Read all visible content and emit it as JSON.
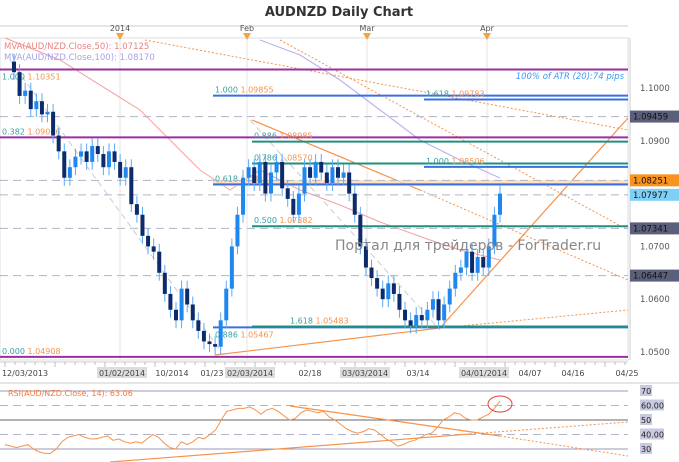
{
  "chart_data": {
    "type": "candlestick",
    "title": "AUDNZD Daily Chart",
    "top_markers": [
      "2014",
      "Feb",
      "Mar",
      "Apr"
    ],
    "x_tick_labels": [
      "12/03/2013",
      "01/02/2014",
      "10/2014",
      "01/23",
      "02/03/2014",
      "02/18",
      "03/03/2014",
      "03/14",
      "04/01/2014",
      "04/07",
      "04/16",
      "04/25"
    ],
    "y_tick_labels": [
      "1.1000",
      "1.0900",
      "1.0700",
      "1.0600",
      "1.0500"
    ],
    "y_ticks": [
      1.1,
      1.09,
      1.07,
      1.06,
      1.05
    ],
    "ylim": [
      1.0465,
      1.1125
    ],
    "price_tags": [
      {
        "value": "1.09459",
        "color": "#5a5f7a"
      },
      {
        "value": "1.08251",
        "color": "#f7931e"
      },
      {
        "value": "1.07977",
        "color": "#7fd0f7"
      },
      {
        "value": "1.07341",
        "color": "#5a5f7a"
      },
      {
        "value": "1.06447",
        "color": "#5a5f7a"
      }
    ],
    "close": [
      1.103,
      1.0985,
      1.0995,
      1.096,
      1.0975,
      1.095,
      1.0955,
      1.091,
      1.088,
      1.083,
      1.085,
      1.087,
      1.088,
      1.086,
      1.089,
      1.0875,
      1.085,
      1.088,
      1.086,
      1.083,
      1.085,
      1.078,
      1.076,
      1.072,
      1.07,
      1.069,
      1.065,
      1.061,
      1.058,
      1.056,
      1.062,
      1.059,
      1.056,
      1.054,
      1.052,
      1.0515,
      1.051,
      1.056,
      1.062,
      1.07,
      1.076,
      1.083,
      1.085,
      1.082,
      1.086,
      1.08,
      1.084,
      1.086,
      1.081,
      1.079,
      1.076,
      1.08,
      1.085,
      1.083,
      1.086,
      1.084,
      1.082,
      1.085,
      1.083,
      1.084,
      1.08,
      1.076,
      1.07,
      1.066,
      1.064,
      1.062,
      1.06,
      1.063,
      1.061,
      1.058,
      1.056,
      1.055,
      1.057,
      1.056,
      1.058,
      1.06,
      1.056,
      1.059,
      1.062,
      1.065,
      1.066,
      1.069,
      1.065,
      1.068,
      1.066,
      1.07,
      1.076,
      1.08
    ],
    "fib_levels": [
      {
        "ratio": "1.000",
        "value": "1.10351",
        "color": "#9b2fa0"
      },
      {
        "ratio": "1.000",
        "value": "1.09855",
        "color": "#3b6fe0"
      },
      {
        "ratio": "1.618",
        "value": "1.09783",
        "color": "#3b6fe0"
      },
      {
        "ratio": "0.382",
        "value": "1.09066",
        "color": "#9b2fa0"
      },
      {
        "ratio": "0.886",
        "value": "1.08985",
        "color": "#1f9080"
      },
      {
        "ratio": "0.786",
        "value": "1.08570",
        "color": "#1f9080"
      },
      {
        "ratio": "1.000",
        "value": "1.08506",
        "color": "#3b6fe0"
      },
      {
        "ratio": "0.618",
        "value": "1.08175",
        "color": "#3b6fe0"
      },
      {
        "ratio": "0.500",
        "value": "1.07382",
        "color": "#1f9080"
      },
      {
        "ratio": "0.886",
        "value": "1.05467",
        "color": "#3b6fe0"
      },
      {
        "ratio": "1.618",
        "value": "1.05483",
        "color": "#1f9080"
      },
      {
        "ratio": "0.000",
        "value": "1.04908",
        "color": "#9b2fa0"
      }
    ],
    "legend": {
      "ma50": "MVA(AUD/NZD.Close,50): 1.07125",
      "ma100": "MVA(AUD/NZD.Close,100): 1.08170"
    },
    "atr_note": "100% of ATR (20):74 pips",
    "watermark": "Портал для трейдеров - ForTrader.ru",
    "rsi": {
      "label": "RSI(AUD/NZD.Close, 14): 63.06",
      "levels": [
        "70",
        "60.00",
        "50",
        "40.00",
        "30"
      ],
      "values": [
        33,
        32,
        31,
        32,
        33,
        30,
        28,
        27,
        27,
        30,
        35,
        38,
        39,
        40,
        38,
        37,
        37,
        38,
        39,
        36,
        37,
        35,
        34,
        35,
        34,
        37,
        40,
        38,
        34,
        31,
        30,
        35,
        33,
        35,
        38,
        37,
        40,
        43,
        50,
        56,
        57,
        58,
        58,
        59,
        57,
        54,
        57,
        58,
        56,
        53,
        50,
        51,
        55,
        57,
        56,
        55,
        56,
        52,
        50,
        47,
        44,
        42,
        41,
        42,
        44,
        43,
        40,
        37,
        35,
        32,
        33,
        35,
        36,
        38,
        40,
        41,
        45,
        50,
        52,
        55,
        54,
        51,
        50,
        50,
        52,
        54,
        58,
        63
      ]
    },
    "colors": {
      "bull": "#1e88f0",
      "bear": "#0d2a6b",
      "ma50": "#f4a0a0",
      "ma100": "#b9b3f0",
      "trend": "#f7924a"
    }
  }
}
